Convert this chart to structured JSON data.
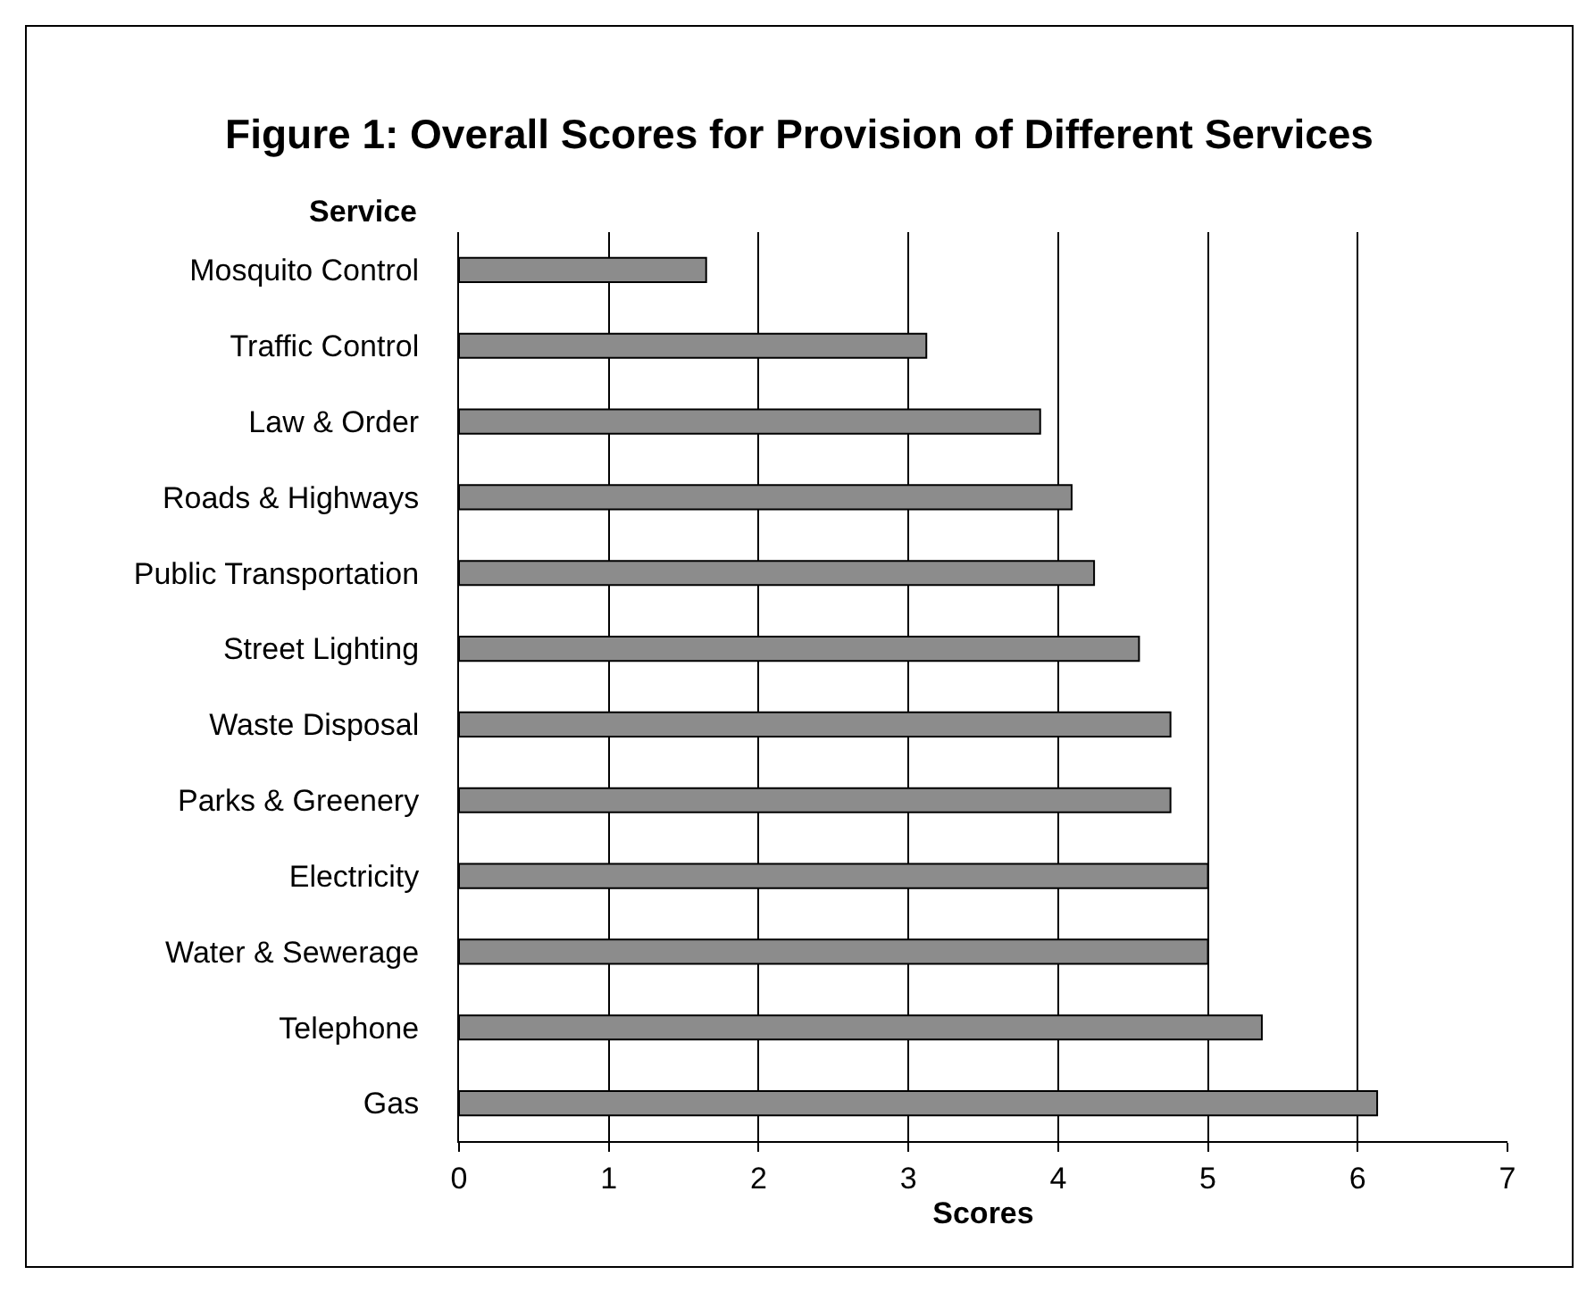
{
  "chart_data": {
    "type": "bar",
    "orientation": "horizontal",
    "title": "Figure 1: Overall Scores for Provision of Different Services",
    "xlabel": "Scores",
    "ylabel": "Service",
    "categories": [
      "Mosquito Control",
      "Traffic Control",
      "Law & Order",
      "Roads & Highways",
      "Public Transportation",
      "Street Lighting",
      "Waste Disposal",
      "Parks & Greenery",
      "Electricity",
      "Water & Sewerage",
      "Telephone",
      "Gas"
    ],
    "values": [
      1.65,
      3.12,
      3.88,
      4.09,
      4.24,
      4.54,
      4.75,
      4.75,
      5.0,
      5.0,
      5.36,
      6.13
    ],
    "color": "#8c8c8c",
    "xlim": [
      0,
      7
    ],
    "xticks": [
      0,
      1,
      2,
      3,
      4,
      5,
      6,
      7
    ],
    "grid": "x"
  }
}
